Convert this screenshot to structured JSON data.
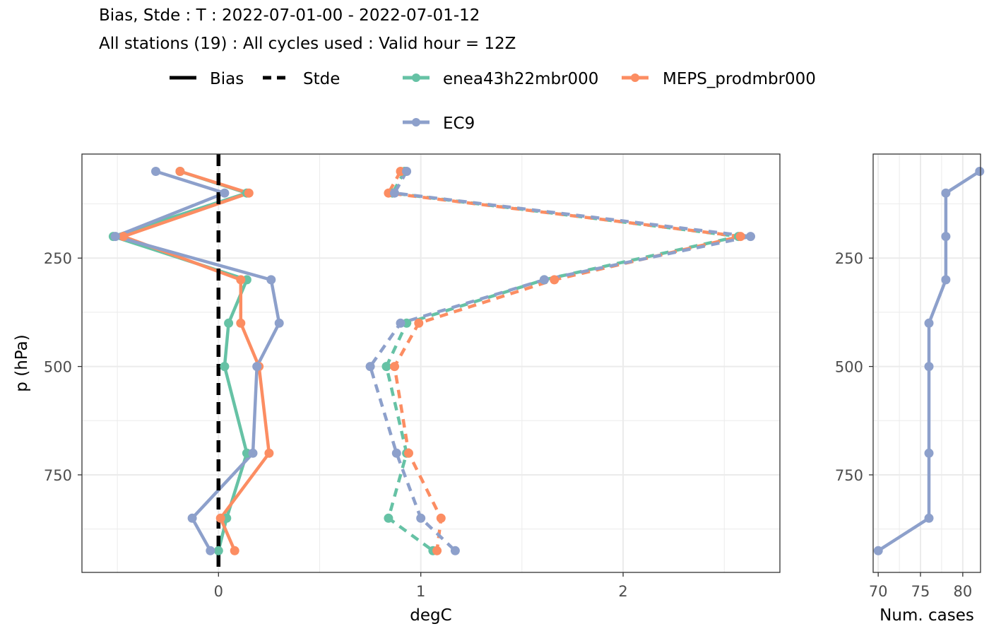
{
  "title": "Bias, Stde : T : 2022-07-01-00 - 2022-07-01-12",
  "subtitle": "All stations (19) : All cycles used : Valid hour = 12Z",
  "legend": {
    "linetype_items": [
      "Bias",
      "Stde"
    ],
    "model_items": [
      "enea43h22mbr000",
      "MEPS_prodmbr000",
      "EC9"
    ]
  },
  "colors": {
    "enea43h22mbr000": "#66c2a5",
    "MEPS_prodmbr000": "#fc8d62",
    "EC9": "#8da0cb",
    "zero_line": "#000000",
    "grid": "#ebebeb",
    "panel_border": "#333333"
  },
  "chart_data": [
    {
      "type": "line",
      "panel": "main",
      "xlabel": "degC",
      "ylabel": "p (hPa)",
      "y_reversed": true,
      "xlim": [
        -0.675,
        2.775
      ],
      "ylim": [
        10,
        975
      ],
      "x_ticks": [
        0,
        1,
        2
      ],
      "y_ticks": [
        250,
        500,
        750
      ],
      "grid": true,
      "reference_line": {
        "x": 0,
        "style": "dashed",
        "label": ""
      },
      "pressure_levels": [
        50,
        100,
        200,
        300,
        400,
        500,
        700,
        850,
        925
      ],
      "series": [
        {
          "name": "enea43h22mbr000",
          "score": "Bias",
          "linestyle": "solid",
          "x": [
            -0.19,
            0.14,
            -0.52,
            0.14,
            0.05,
            0.03,
            0.14,
            0.04,
            0.0
          ]
        },
        {
          "name": "MEPS_prodmbr000",
          "score": "Bias",
          "linestyle": "solid",
          "x": [
            -0.19,
            0.15,
            -0.47,
            0.11,
            0.11,
            0.2,
            0.25,
            0.01,
            0.08
          ]
        },
        {
          "name": "EC9",
          "score": "Bias",
          "linestyle": "solid",
          "x": [
            -0.31,
            0.03,
            -0.51,
            0.26,
            0.3,
            0.19,
            0.17,
            -0.13,
            -0.04
          ]
        },
        {
          "name": "enea43h22mbr000",
          "score": "Stde",
          "linestyle": "dashed",
          "x": [
            0.92,
            0.86,
            2.57,
            1.61,
            0.93,
            0.83,
            0.93,
            0.84,
            1.06
          ]
        },
        {
          "name": "MEPS_prodmbr000",
          "score": "Stde",
          "linestyle": "dashed",
          "x": [
            0.9,
            0.84,
            2.58,
            1.66,
            0.99,
            0.87,
            0.94,
            1.1,
            1.08
          ]
        },
        {
          "name": "EC9",
          "score": "Stde",
          "linestyle": "dashed",
          "x": [
            0.93,
            0.87,
            2.63,
            1.61,
            0.9,
            0.75,
            0.88,
            1.0,
            1.17
          ]
        }
      ]
    },
    {
      "type": "line",
      "panel": "cases",
      "xlabel": "Num. cases",
      "ylabel": "",
      "y_reversed": true,
      "xlim": [
        69.4,
        82.1
      ],
      "ylim": [
        10,
        975
      ],
      "x_ticks": [
        70,
        75,
        80
      ],
      "y_ticks": [
        250,
        500,
        750
      ],
      "grid": true,
      "pressure_levels": [
        50,
        100,
        200,
        300,
        400,
        500,
        700,
        850,
        925
      ],
      "series": [
        {
          "name": "EC9",
          "linestyle": "solid",
          "x": [
            82,
            78,
            78,
            78,
            76,
            76,
            76,
            76,
            70
          ]
        }
      ]
    }
  ]
}
